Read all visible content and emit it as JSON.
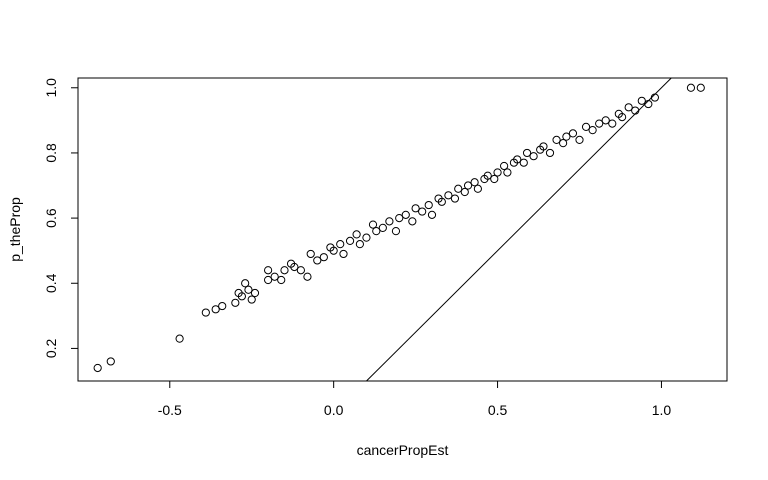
{
  "chart_data": {
    "type": "scatter",
    "title": "",
    "xlabel": "cancerPropEst",
    "ylabel": "p_theProp",
    "xlim": [
      -0.78,
      1.2
    ],
    "ylim": [
      0.1,
      1.03
    ],
    "xticks": [
      -0.5,
      0.0,
      0.5,
      1.0
    ],
    "xtick_labels": [
      "-0.5",
      "0.0",
      "0.5",
      "1.0"
    ],
    "yticks": [
      0.2,
      0.4,
      0.6,
      0.8,
      1.0
    ],
    "ytick_labels": [
      "0.2",
      "0.4",
      "0.6",
      "0.8",
      "1.0"
    ],
    "grid": false,
    "marker": "open-circle",
    "color": "#000000",
    "reference_line": {
      "slope": 1,
      "intercept": 0
    },
    "series": [
      {
        "values": [
          [
            -0.72,
            0.14
          ],
          [
            -0.68,
            0.16
          ],
          [
            -0.47,
            0.23
          ],
          [
            -0.39,
            0.31
          ],
          [
            -0.36,
            0.32
          ],
          [
            -0.34,
            0.33
          ],
          [
            -0.3,
            0.34
          ],
          [
            -0.29,
            0.37
          ],
          [
            -0.28,
            0.36
          ],
          [
            -0.27,
            0.4
          ],
          [
            -0.26,
            0.38
          ],
          [
            -0.25,
            0.35
          ],
          [
            -0.24,
            0.37
          ],
          [
            -0.2,
            0.41
          ],
          [
            -0.2,
            0.44
          ],
          [
            -0.18,
            0.42
          ],
          [
            -0.16,
            0.41
          ],
          [
            -0.15,
            0.44
          ],
          [
            -0.13,
            0.46
          ],
          [
            -0.12,
            0.45
          ],
          [
            -0.1,
            0.44
          ],
          [
            -0.08,
            0.42
          ],
          [
            -0.07,
            0.49
          ],
          [
            -0.05,
            0.47
          ],
          [
            -0.03,
            0.48
          ],
          [
            -0.01,
            0.51
          ],
          [
            0.0,
            0.5
          ],
          [
            0.02,
            0.52
          ],
          [
            0.03,
            0.49
          ],
          [
            0.05,
            0.53
          ],
          [
            0.07,
            0.55
          ],
          [
            0.08,
            0.52
          ],
          [
            0.1,
            0.54
          ],
          [
            0.12,
            0.58
          ],
          [
            0.13,
            0.56
          ],
          [
            0.15,
            0.57
          ],
          [
            0.17,
            0.59
          ],
          [
            0.19,
            0.56
          ],
          [
            0.2,
            0.6
          ],
          [
            0.22,
            0.61
          ],
          [
            0.24,
            0.59
          ],
          [
            0.25,
            0.63
          ],
          [
            0.27,
            0.62
          ],
          [
            0.29,
            0.64
          ],
          [
            0.3,
            0.61
          ],
          [
            0.32,
            0.66
          ],
          [
            0.33,
            0.65
          ],
          [
            0.35,
            0.67
          ],
          [
            0.37,
            0.66
          ],
          [
            0.38,
            0.69
          ],
          [
            0.4,
            0.68
          ],
          [
            0.41,
            0.7
          ],
          [
            0.43,
            0.71
          ],
          [
            0.44,
            0.69
          ],
          [
            0.46,
            0.72
          ],
          [
            0.47,
            0.73
          ],
          [
            0.49,
            0.72
          ],
          [
            0.5,
            0.74
          ],
          [
            0.52,
            0.76
          ],
          [
            0.53,
            0.74
          ],
          [
            0.55,
            0.77
          ],
          [
            0.56,
            0.78
          ],
          [
            0.58,
            0.77
          ],
          [
            0.59,
            0.8
          ],
          [
            0.61,
            0.79
          ],
          [
            0.63,
            0.81
          ],
          [
            0.64,
            0.82
          ],
          [
            0.66,
            0.8
          ],
          [
            0.68,
            0.84
          ],
          [
            0.7,
            0.83
          ],
          [
            0.71,
            0.85
          ],
          [
            0.73,
            0.86
          ],
          [
            0.75,
            0.84
          ],
          [
            0.77,
            0.88
          ],
          [
            0.79,
            0.87
          ],
          [
            0.81,
            0.89
          ],
          [
            0.83,
            0.9
          ],
          [
            0.85,
            0.89
          ],
          [
            0.87,
            0.92
          ],
          [
            0.88,
            0.91
          ],
          [
            0.9,
            0.94
          ],
          [
            0.92,
            0.93
          ],
          [
            0.94,
            0.96
          ],
          [
            0.96,
            0.95
          ],
          [
            0.98,
            0.97
          ],
          [
            1.09,
            1.0
          ],
          [
            1.12,
            1.0
          ]
        ]
      }
    ]
  }
}
